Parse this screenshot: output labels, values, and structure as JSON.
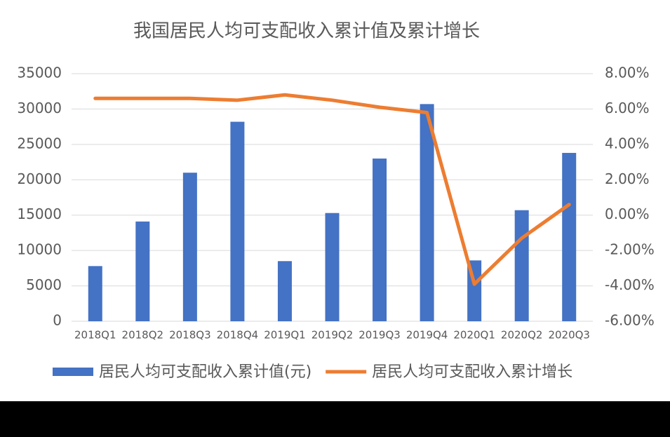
{
  "chart_data": {
    "type": "bar",
    "title": "我国居民人均可支配收入累计值及累计增长",
    "categories": [
      "2018Q1",
      "2018Q2",
      "2018Q3",
      "2018Q4",
      "2019Q1",
      "2019Q2",
      "2019Q3",
      "2019Q4",
      "2020Q1",
      "2020Q2",
      "2020Q3"
    ],
    "series": [
      {
        "name": "居民人均可支配收入累计值(元)",
        "type": "bar",
        "color": "#4472c4",
        "values": [
          7800,
          14100,
          21000,
          28200,
          8500,
          15300,
          23000,
          30700,
          8600,
          15700,
          23800
        ]
      },
      {
        "name": "居民人均可支配收入累计增长",
        "type": "line",
        "axis": "y2",
        "color": "#ed7d31",
        "values": [
          6.6,
          6.6,
          6.6,
          6.5,
          6.8,
          6.5,
          6.1,
          5.8,
          -3.9,
          -1.3,
          0.6
        ]
      }
    ],
    "ylim": [
      0,
      35000
    ],
    "yticks": [
      0,
      5000,
      10000,
      15000,
      20000,
      25000,
      30000,
      35000
    ],
    "y2lim": [
      -6,
      8
    ],
    "y2ticks": [
      {
        "value": -6,
        "label": "-6.00%"
      },
      {
        "value": -4,
        "label": "-4.00%"
      },
      {
        "value": -2,
        "label": "-2.00%"
      },
      {
        "value": 0,
        "label": "0.00%"
      },
      {
        "value": 2,
        "label": "2.00%"
      },
      {
        "value": 4,
        "label": "4.00%"
      },
      {
        "value": 6,
        "label": "6.00%"
      },
      {
        "value": 8,
        "label": "8.00%"
      }
    ],
    "grid": true,
    "legend": "bottom"
  }
}
